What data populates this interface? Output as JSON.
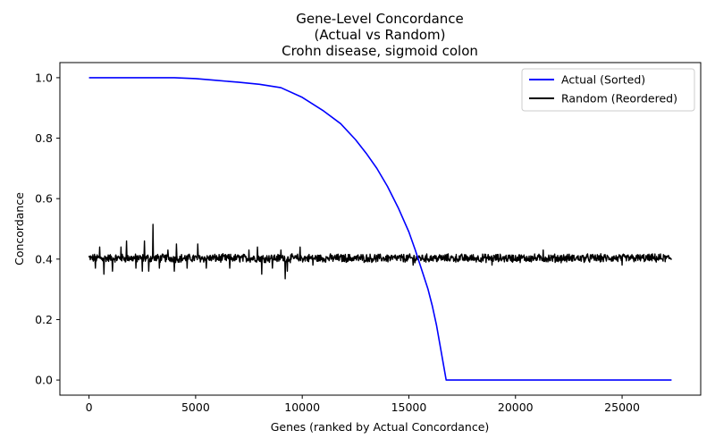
{
  "chart_data": {
    "type": "line",
    "title": [
      "Gene-Level Concordance",
      "(Actual vs Random)",
      "Crohn disease, sigmoid colon"
    ],
    "xlabel": "Genes (ranked by Actual Concordance)",
    "ylabel": "Concordance",
    "xlim": [
      -1366,
      28686
    ],
    "ylim": [
      -0.05,
      1.05
    ],
    "x_ticks": [
      0,
      5000,
      10000,
      15000,
      20000,
      25000
    ],
    "y_ticks": [
      0.0,
      0.2,
      0.4,
      0.6,
      0.8,
      1.0
    ],
    "x_tick_labels": [
      "0",
      "5000",
      "10000",
      "15000",
      "20000",
      "25000"
    ],
    "y_tick_labels": [
      "0.0",
      "0.2",
      "0.4",
      "0.6",
      "0.8",
      "1.0"
    ],
    "grid": false,
    "legend_position": "top-right",
    "n_genes": 27320,
    "series": [
      {
        "name": "Actual (Sorted)",
        "color": "#0000ff",
        "x": [
          0,
          2000,
          4000,
          5000,
          6000,
          7000,
          8000,
          9000,
          10000,
          11000,
          11800,
          12500,
          13000,
          13500,
          14000,
          14500,
          15000,
          15300,
          15600,
          15900,
          16100,
          16300,
          16500,
          16650,
          16750,
          17000,
          20000,
          25000,
          27320
        ],
        "y": [
          1.0,
          1.0,
          1.0,
          0.997,
          0.991,
          0.985,
          0.978,
          0.967,
          0.935,
          0.89,
          0.848,
          0.795,
          0.75,
          0.7,
          0.64,
          0.57,
          0.49,
          0.43,
          0.365,
          0.3,
          0.245,
          0.18,
          0.1,
          0.04,
          0.0,
          0.0,
          0.0,
          0.0,
          0.0
        ]
      },
      {
        "name": "Random (Reordered)",
        "color": "#000000",
        "center": 0.403,
        "noise": 0.012,
        "spikes": [
          {
            "x": 300,
            "y": 0.37
          },
          {
            "x": 500,
            "y": 0.44
          },
          {
            "x": 700,
            "y": 0.35
          },
          {
            "x": 1100,
            "y": 0.36
          },
          {
            "x": 1500,
            "y": 0.44
          },
          {
            "x": 1750,
            "y": 0.46
          },
          {
            "x": 2200,
            "y": 0.37
          },
          {
            "x": 2500,
            "y": 0.36
          },
          {
            "x": 2600,
            "y": 0.46
          },
          {
            "x": 2800,
            "y": 0.36
          },
          {
            "x": 2990,
            "y": 0.515
          },
          {
            "x": 3300,
            "y": 0.37
          },
          {
            "x": 3700,
            "y": 0.43
          },
          {
            "x": 4000,
            "y": 0.36
          },
          {
            "x": 4100,
            "y": 0.45
          },
          {
            "x": 4600,
            "y": 0.37
          },
          {
            "x": 5100,
            "y": 0.45
          },
          {
            "x": 5500,
            "y": 0.37
          },
          {
            "x": 6600,
            "y": 0.37
          },
          {
            "x": 7500,
            "y": 0.43
          },
          {
            "x": 7900,
            "y": 0.44
          },
          {
            "x": 8100,
            "y": 0.35
          },
          {
            "x": 8600,
            "y": 0.37
          },
          {
            "x": 9000,
            "y": 0.43
          },
          {
            "x": 9200,
            "y": 0.335
          },
          {
            "x": 9300,
            "y": 0.36
          },
          {
            "x": 9900,
            "y": 0.44
          },
          {
            "x": 10500,
            "y": 0.38
          },
          {
            "x": 15200,
            "y": 0.38
          },
          {
            "x": 18900,
            "y": 0.38
          },
          {
            "x": 21300,
            "y": 0.43
          },
          {
            "x": 25000,
            "y": 0.38
          }
        ]
      }
    ]
  }
}
